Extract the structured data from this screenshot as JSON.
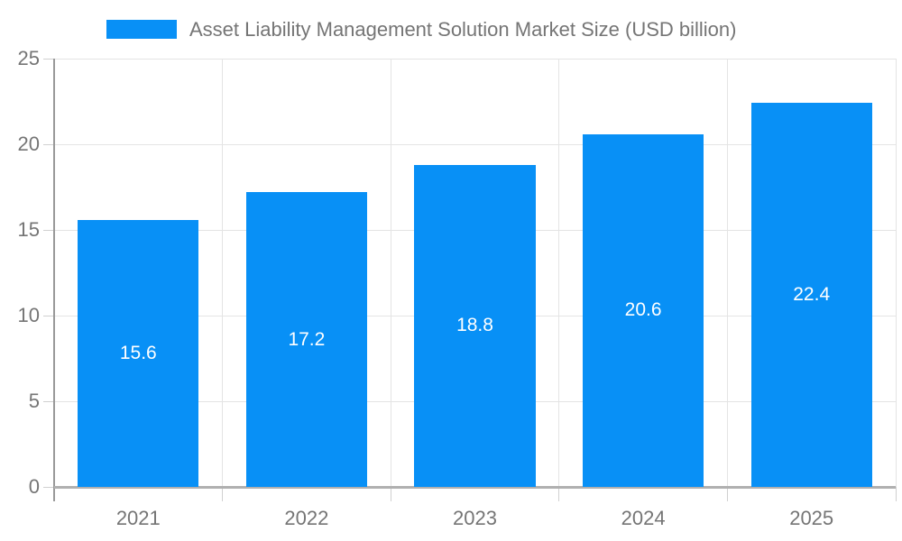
{
  "chart_data": {
    "type": "bar",
    "title": "Asset Liability Management Solution Market Size (USD billion)",
    "categories": [
      "2021",
      "2022",
      "2023",
      "2024",
      "2025"
    ],
    "values": [
      15.6,
      17.2,
      18.8,
      20.6,
      22.4
    ],
    "xlabel": "",
    "ylabel": "",
    "ylim": [
      0,
      25
    ],
    "yticks": [
      0,
      5,
      10,
      15,
      20,
      25
    ],
    "grid": true,
    "legend_position": "top",
    "colors": {
      "bar": "#0890F6",
      "value_label": "#ffffff",
      "axis_text": "#757575",
      "grid_line": "#e4e4e4",
      "tick_line": "#d0d0d0",
      "y_axis_line": "#999999",
      "x_axis_line": "#b0b0b0"
    }
  }
}
